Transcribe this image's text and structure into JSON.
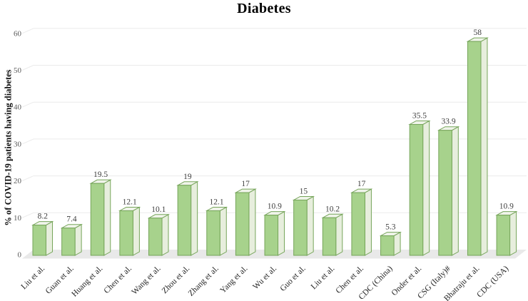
{
  "chart_data": {
    "type": "bar",
    "style": "3d-column",
    "title": "Diabetes",
    "xlabel": "",
    "ylabel": "% of COVID-19 patients having diabetes",
    "ylim": [
      0,
      60
    ],
    "yticks": [
      0,
      10,
      20,
      30,
      40,
      50,
      60
    ],
    "grid": true,
    "legend": "none",
    "categories": [
      "Liu et al.",
      "Guan et al.",
      "Huang et al.",
      "Chen et al.",
      "Wang et al.",
      "Zhou et al.",
      "Zhang et al.",
      "Yang et al.",
      "Wu et al.",
      "Guo et al.",
      "Liu et al.",
      "Chen et al.",
      "CDC (China)",
      "Onder et al.",
      "CSG (Italy)#",
      "Bhatraju et al.",
      "CDC (USA)"
    ],
    "values": [
      8.2,
      7.4,
      19.5,
      12.1,
      10.1,
      19,
      12.1,
      17,
      10.9,
      15,
      10.2,
      17,
      5.3,
      35.5,
      33.9,
      58,
      10.9
    ],
    "value_labels": [
      "8.2",
      "7.4",
      "19.5",
      "12.1",
      "10.1",
      "19",
      "12.1",
      "17",
      "10.9",
      "15",
      "10.2",
      "17",
      "5.3",
      "35.5",
      "33.9",
      "58",
      "10.9"
    ],
    "colors": {
      "bar_front": "#a7d28c",
      "bar_top": "#f0f4ea",
      "bar_side": "#e7eedd",
      "bar_border": "#76a55a",
      "floor": "#e9e9e9",
      "gridline": "#ebebeb",
      "tick_text": "#595959",
      "value_text": "#404040",
      "category_text": "#262626",
      "background": "#ffffff"
    }
  }
}
